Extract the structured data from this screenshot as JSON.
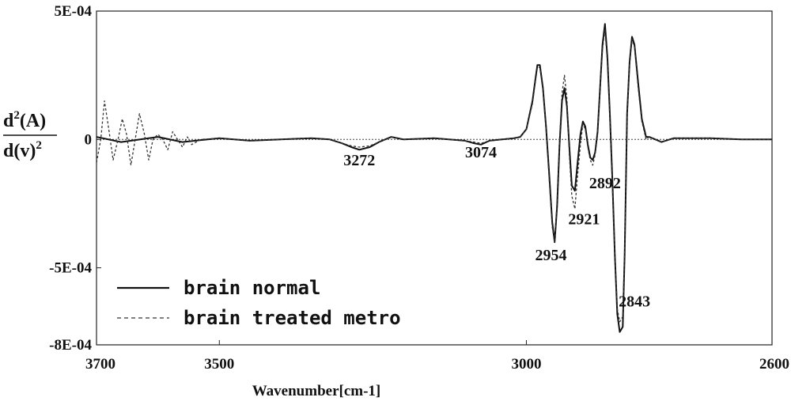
{
  "chart_data": {
    "type": "line",
    "xlabel": "Wavenumber[cm-1]",
    "ylabel": {
      "numerator": "d",
      "numerator_sup": "2",
      "numerator_rest": "(A)",
      "denominator": "d(v)",
      "denominator_sup": "2"
    },
    "xlim": [
      3700,
      2600
    ],
    "ylim": [
      -0.0008,
      0.0005
    ],
    "xticks": [
      3700,
      3500,
      3000,
      2600
    ],
    "xtick_labels": [
      "3700",
      "3500",
      "3000",
      "2600"
    ],
    "yticks": [
      0.0005,
      0,
      -0.0005,
      -0.0008
    ],
    "ytick_labels": [
      "5E-04",
      "0",
      "-5E-04",
      "-8E-04"
    ],
    "zero_line": true,
    "grid": false,
    "legend_position": "bottom-left",
    "series": [
      {
        "name": "brain normal",
        "style": "solid",
        "color": "#111111",
        "x": [
          3700,
          3660,
          3600,
          3560,
          3500,
          3450,
          3400,
          3350,
          3320,
          3300,
          3285,
          3272,
          3255,
          3240,
          3220,
          3200,
          3150,
          3100,
          3085,
          3074,
          3060,
          3040,
          3020,
          3010,
          3000,
          2990,
          2985,
          2982,
          2978,
          2973,
          2968,
          2963,
          2958,
          2954,
          2950,
          2946,
          2942,
          2938,
          2934,
          2930,
          2926,
          2921,
          2917,
          2912,
          2908,
          2904,
          2900,
          2896,
          2892,
          2888,
          2884,
          2880,
          2876,
          2872,
          2868,
          2864,
          2860,
          2856,
          2852,
          2848,
          2843,
          2840,
          2836,
          2832,
          2828,
          2824,
          2818,
          2812,
          2805,
          2800,
          2780,
          2760,
          2700,
          2650,
          2600
        ],
        "y": [
          1e-05,
          -1e-05,
          1e-05,
          -1e-05,
          5e-06,
          -5e-06,
          0.0,
          5e-06,
          0.0,
          -1.5e-05,
          -3e-05,
          -4e-05,
          -3e-05,
          -1e-05,
          1e-05,
          0.0,
          5e-06,
          -5e-06,
          -1.5e-05,
          -2e-05,
          -5e-06,
          0.0,
          5e-06,
          1e-05,
          4e-05,
          0.00015,
          0.00024,
          0.00029,
          0.00029,
          0.0002,
          5e-05,
          -0.00013,
          -0.00032,
          -0.0004,
          -0.00026,
          -2e-05,
          0.00015,
          0.0002,
          0.00013,
          -3e-05,
          -0.00018,
          -0.0002,
          -0.0001,
          2e-05,
          7e-05,
          5e-05,
          -2e-05,
          -7e-05,
          -8e-05,
          -5e-05,
          3e-05,
          0.0002,
          0.00037,
          0.00045,
          0.00032,
          0.0001,
          -0.00015,
          -0.00045,
          -0.00068,
          -0.00075,
          -0.00073,
          -0.00045,
          0.0001,
          0.0003,
          0.0004,
          0.00037,
          0.00022,
          8e-05,
          1e-05,
          1e-05,
          -1e-05,
          5e-06,
          5e-06,
          0.0,
          0.0
        ]
      },
      {
        "name": "brain treated metro",
        "style": "dashed",
        "color": "#333333",
        "x": [
          3700,
          3693,
          3687,
          3680,
          3673,
          3665,
          3658,
          3651,
          3644,
          3637,
          3630,
          3622,
          3615,
          3608,
          3600,
          3592,
          3584,
          3576,
          3568,
          3560,
          3552,
          3545,
          3530,
          3500,
          3450,
          3400,
          3350,
          3320,
          3300,
          3285,
          3272,
          3255,
          3240,
          3220,
          3200,
          3150,
          3100,
          3085,
          3074,
          3060,
          3040,
          3020,
          3010,
          3000,
          2990,
          2985,
          2982,
          2978,
          2973,
          2968,
          2963,
          2958,
          2954,
          2950,
          2946,
          2942,
          2938,
          2934,
          2930,
          2926,
          2921,
          2917,
          2912,
          2908,
          2904,
          2900,
          2896,
          2892,
          2888,
          2884,
          2880,
          2876,
          2872,
          2868,
          2864,
          2860,
          2856,
          2852,
          2848,
          2843,
          2840,
          2836,
          2832,
          2828,
          2824,
          2818,
          2812,
          2805,
          2800,
          2780,
          2760,
          2700,
          2650,
          2600
        ],
        "y": [
          -9e-05,
          0.0,
          0.00015,
          4e-05,
          -8e-05,
          0.0,
          8e-05,
          2e-05,
          -0.0001,
          0.0,
          0.0001,
          2e-05,
          -8e-05,
          0.0,
          2e-05,
          0.0,
          -4e-05,
          3e-05,
          0.0,
          -3e-05,
          1e-05,
          -2e-05,
          0.0,
          5e-06,
          -5e-06,
          0.0,
          5e-06,
          0.0,
          -1.5e-05,
          -2.5e-05,
          -3e-05,
          -2.5e-05,
          -1e-05,
          1e-05,
          0.0,
          5e-06,
          -5e-06,
          -1e-05,
          -1.5e-05,
          -5e-06,
          0.0,
          5e-06,
          1e-05,
          4e-05,
          0.00014,
          0.00023,
          0.00028,
          0.00028,
          0.00019,
          4e-05,
          -0.00015,
          -0.00034,
          -0.0004,
          -0.00024,
          0.0,
          0.00018,
          0.00025,
          0.00016,
          -6e-05,
          -0.00022,
          -0.00027,
          -0.00015,
          -2e-05,
          6e-05,
          4e-05,
          -3e-05,
          -8e-05,
          -0.0001,
          -6e-05,
          2e-05,
          0.00019,
          0.00035,
          0.00043,
          0.0003,
          8e-05,
          -0.00018,
          -0.00045,
          -0.00066,
          -0.00071,
          -0.00069,
          -0.00043,
          9e-05,
          0.00029,
          0.00039,
          0.00036,
          0.0002,
          7e-05,
          0.0,
          1e-05,
          -1e-05,
          5e-06,
          5e-06,
          0.0,
          0.0
        ]
      }
    ],
    "annotations": [
      {
        "text": "3272",
        "x": 3272,
        "y": -0.0001
      },
      {
        "text": "3074",
        "x": 3074,
        "y": -7e-05
      },
      {
        "text": "2954",
        "x": 2960,
        "y": -0.00047
      },
      {
        "text": "2921",
        "x": 2906,
        "y": -0.00033
      },
      {
        "text": "2892",
        "x": 2872,
        "y": -0.00019
      },
      {
        "text": "2843",
        "x": 2824,
        "y": -0.00065
      }
    ]
  }
}
